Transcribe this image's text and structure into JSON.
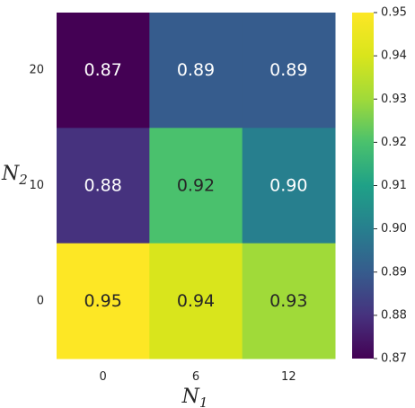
{
  "chart_data": {
    "type": "heatmap",
    "x_label_main": "N",
    "x_label_sub": "1",
    "y_label_main": "N",
    "y_label_sub": "2",
    "x_categories": [
      "0",
      "6",
      "12"
    ],
    "y_categories": [
      "20",
      "10",
      "0"
    ],
    "values": [
      [
        0.87,
        0.89,
        0.89
      ],
      [
        0.88,
        0.92,
        0.9
      ],
      [
        0.95,
        0.94,
        0.93
      ]
    ],
    "value_labels": [
      [
        "0.87",
        "0.89",
        "0.89"
      ],
      [
        "0.88",
        "0.92",
        "0.90"
      ],
      [
        "0.95",
        "0.94",
        "0.93"
      ]
    ],
    "colormap": "viridis",
    "vmin": 0.87,
    "vmax": 0.95,
    "colorbar_ticks": [
      "0.87",
      "0.88",
      "0.89",
      "0.90",
      "0.91",
      "0.92",
      "0.93",
      "0.94",
      "0.95"
    ],
    "colorbar_tick_values": [
      0.87,
      0.88,
      0.89,
      0.9,
      0.91,
      0.92,
      0.93,
      0.94,
      0.95
    ],
    "annotation_color_light": "#ffffff",
    "annotation_color_dark": "#262626",
    "grid": false
  }
}
